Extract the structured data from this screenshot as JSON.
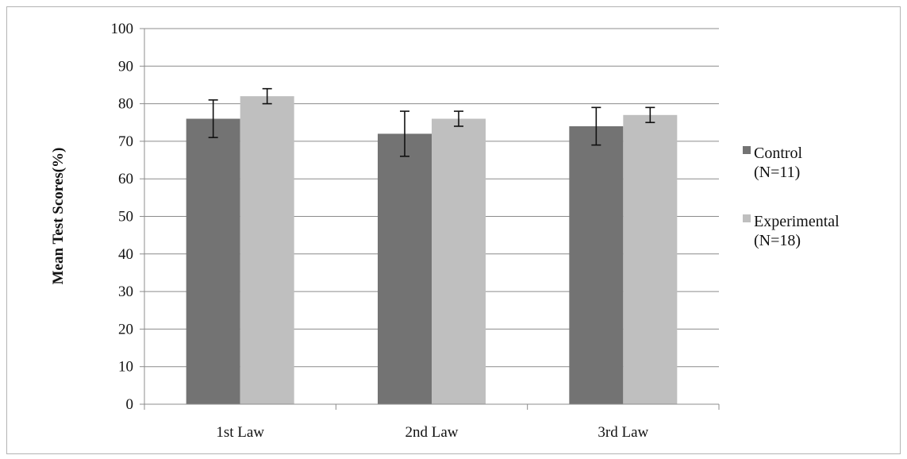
{
  "chart_data": {
    "type": "bar",
    "ylabel": "Mean Test Scores(%)",
    "xlabel": "",
    "title": "",
    "ylim": [
      0,
      100
    ],
    "ytick_step": 10,
    "grid": true,
    "legend_position": "right",
    "categories": [
      "1st Law",
      "2nd Law",
      "3rd Law"
    ],
    "series": [
      {
        "name": "Control (N=11)",
        "name_lines": [
          "Control",
          "(N=11)"
        ],
        "color": "#737373",
        "values": [
          76,
          72,
          74
        ],
        "error_low": [
          71,
          66,
          69
        ],
        "error_high": [
          81,
          78,
          79
        ]
      },
      {
        "name": "Experimental (N=18)",
        "name_lines": [
          "Experimental",
          "(N=18)"
        ],
        "color": "#bfbfbf",
        "values": [
          82,
          76,
          77
        ],
        "error_low": [
          80,
          74,
          75
        ],
        "error_high": [
          84,
          78,
          79
        ]
      }
    ]
  }
}
